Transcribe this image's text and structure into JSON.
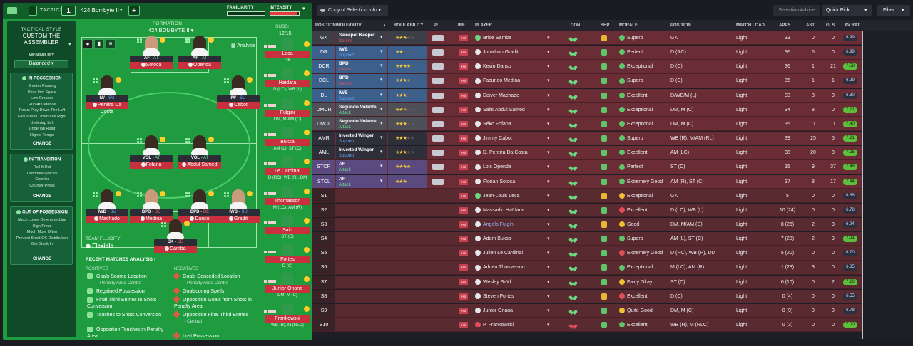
{
  "topbar": {
    "tactics_label": "TACTICS",
    "slot": "1",
    "formation": "424 Bombyte II",
    "familiarity_label": "FAMILIARITY",
    "familiarity_level": 0.02,
    "intensity_label": "INTENSITY",
    "intensity_level": 0.92
  },
  "style": {
    "label": "TACTICAL STYLE",
    "name": "CUSTOM THE ASSEMBLER",
    "mentality_label": "MENTALITY",
    "mentality": "Balanced",
    "in_possession": {
      "title": "IN POSSESSION",
      "items": [
        "Shorter Passing",
        "Pass Into Space",
        "Low Crosses",
        "Run At Defence",
        "Focus Play Down The Left",
        "Focus Play Down The Right",
        "Underlap Left",
        "Underlap Right",
        "Higher Tempo"
      ],
      "change": "CHANGE"
    },
    "in_transition": {
      "title": "IN TRANSITION",
      "items": [
        "Roll It Out",
        "Distribute Quickly",
        "Counter",
        "Counter-Press"
      ],
      "change": "CHANGE"
    },
    "out_of_possession": {
      "title": "OUT OF POSSESSION",
      "items": [
        "Much Lower Defensive Line",
        "High Press",
        "Much More Often",
        "Prevent Short GK Distribution",
        "Get Stuck In"
      ],
      "change": "CHANGE"
    }
  },
  "formation": {
    "title": "FORMATION",
    "name": "424 BOMBYTE II",
    "analysis": "Analysis",
    "subs_label": "SUBS:",
    "subs_count": "12/15",
    "fluidity_label": "TEAM FLUIDITY",
    "fluidity": "Flexible"
  },
  "pitch_players": [
    {
      "role": "AF",
      "duty": "AT",
      "name": "Sotoca",
      "skin": "light"
    },
    {
      "role": "AF",
      "duty": "AT",
      "name": "Openda",
      "skin": "dark"
    },
    {
      "role": "IW",
      "duty": "SU",
      "name": "Pereira Da Costa",
      "skin": "dark"
    },
    {
      "role": "IW",
      "duty": "SU",
      "name": "Cabot",
      "skin": "dark"
    },
    {
      "role": "VOL",
      "duty": "AT",
      "name": "Fofana",
      "skin": "dark"
    },
    {
      "role": "VOL",
      "duty": "AT",
      "name": "Abdul Samed",
      "skin": "dark"
    },
    {
      "role": "IWB",
      "duty": "SU",
      "name": "Machado",
      "skin": "dark"
    },
    {
      "role": "BPD",
      "duty": "DE",
      "name": "Medina",
      "skin": "light"
    },
    {
      "role": "BPD",
      "duty": "DE",
      "name": "Danso",
      "skin": "dark"
    },
    {
      "role": "IWB",
      "duty": "SU",
      "name": "Gradit",
      "skin": "light"
    },
    {
      "role": "SK",
      "duty": "DE",
      "name": "Samba",
      "skin": "dark"
    }
  ],
  "bench": [
    {
      "name": "Leca",
      "pos": "GK"
    },
    {
      "name": "Haidara",
      "pos": "D (LC), WB (L)"
    },
    {
      "name": "Fulgini",
      "pos": "DM, M/AM (C)"
    },
    {
      "name": "Buksa",
      "pos": "AM (L), ST (C)"
    },
    {
      "name": "Le Cardinal",
      "pos": "D (RC), WB (R), DM"
    },
    {
      "name": "Thomasson",
      "pos": "M (LC), AM (R)"
    },
    {
      "name": "Said",
      "pos": "ST (C)"
    },
    {
      "name": "Fortes",
      "pos": "D (C)"
    },
    {
      "name": "Junior Onana",
      "pos": "DM, M (C)"
    },
    {
      "name": "Frankowski",
      "pos": "WB (R), M (RLC)"
    }
  ],
  "recent": {
    "title": "RECENT MATCHES ANALYSIS ›",
    "positives_label": "POSITIVES",
    "negatives_label": "NEGATIVES",
    "positives": [
      {
        "text": "Goals Scored Location",
        "sub": "- Penalty Area Centre"
      },
      {
        "text": "Regained Possession",
        "sub": ""
      },
      {
        "text": "Final Third Entries to Shots Conversion",
        "sub": ""
      },
      {
        "text": "Touches to Shots Conversion",
        "sub": ""
      },
      {
        "text": "Opposition Touches in Penalty Area",
        "sub": ""
      }
    ],
    "negatives": [
      {
        "text": "Goals Conceded Location",
        "sub": "- Penalty Area Centre"
      },
      {
        "text": "Goalscoring Spells",
        "sub": ""
      },
      {
        "text": "Opposition Goals from Shots in Penalty Area",
        "sub": ""
      },
      {
        "text": "Opposition Final Third Entries",
        "sub": "- Central"
      },
      {
        "text": "Lost Possession",
        "sub": ""
      }
    ]
  },
  "table_toolbar": {
    "view": "Copy of Selection Info",
    "advice": "Selection Advice",
    "quick_pick": "Quick Pick",
    "filter": "Filter"
  },
  "columns": [
    "POSITION/ROLE/DUTY",
    "ROLE ABILITY",
    "PI",
    "INF",
    "PLAYER",
    "CON",
    "SHP",
    "MORALE",
    "POSITION",
    "MATCH LOAD",
    "APPS",
    "AST",
    "GLS",
    "AV RAT"
  ],
  "rows": [
    {
      "pos": "GK",
      "role": "Sweeper Keeper",
      "duty": "Defend",
      "stars": 3,
      "player": "Brice Samba",
      "av": "green",
      "morale": "Superb",
      "mor": "pos",
      "position": "GK",
      "load": "Light",
      "apps": "33",
      "ast": "0",
      "gls": "0",
      "rat": "6.99",
      "ratc": "ok2"
    },
    {
      "pos": "DR",
      "role": "IWB",
      "duty": "Support",
      "stars": 2,
      "player": "Jonathan Gradit",
      "av": "white",
      "morale": "Perfect",
      "mor": "pos",
      "position": "D (RC)",
      "load": "Light",
      "apps": "36",
      "ast": "6",
      "gls": "0",
      "rat": "6.99",
      "ratc": "ok2"
    },
    {
      "pos": "DCR",
      "role": "BPD",
      "duty": "Defend",
      "stars": 4,
      "player": "Kevin Danso",
      "av": "white",
      "morale": "Exceptional",
      "mor": "pos",
      "position": "D (C)",
      "load": "Light",
      "apps": "36",
      "ast": "1",
      "gls": "21",
      "rat": "7.58",
      "ratc": "good"
    },
    {
      "pos": "DCL",
      "role": "BPD",
      "duty": "Defend",
      "stars": 3.5,
      "player": "Facundo Medina",
      "av": "white",
      "morale": "Superb",
      "mor": "pos",
      "position": "D (C)",
      "load": "Light",
      "apps": "35",
      "ast": "1",
      "gls": "1",
      "rat": "6.99",
      "ratc": "ok2"
    },
    {
      "pos": "DL",
      "role": "IWB",
      "duty": "Support",
      "stars": 3,
      "player": "Deiver Machado",
      "av": "white",
      "morale": "Excellent",
      "mor": "pos",
      "position": "D/WB/M (L)",
      "load": "Light",
      "apps": "33",
      "ast": "3",
      "gls": "0",
      "rat": "6.80",
      "ratc": "ok2"
    },
    {
      "pos": "DMCR",
      "role": "Segundo Volante",
      "duty": "Attack",
      "stars": 2.5,
      "player": "Salis Abdul Samed",
      "av": "white",
      "morale": "Exceptional",
      "mor": "pos",
      "position": "DM, M (C)",
      "load": "Light",
      "apps": "34",
      "ast": "8",
      "gls": "0",
      "rat": "7.21",
      "ratc": "good"
    },
    {
      "pos": "DMCL",
      "role": "Segundo Volante",
      "duty": "Attack",
      "stars": 3,
      "player": "Séko Fofana",
      "av": "white",
      "morale": "Exceptional",
      "mor": "pos",
      "position": "DM, M (C)",
      "load": "Light",
      "apps": "35",
      "ast": "11",
      "gls": "11",
      "rat": "7.40",
      "ratc": "good"
    },
    {
      "pos": "AMR",
      "role": "Inverted Winger",
      "duty": "Support",
      "stars": 3,
      "player": "Jimmy Cabot",
      "av": "white",
      "morale": "Superb",
      "mor": "pos",
      "position": "WB (R), M/AM (RL)",
      "load": "Light",
      "apps": "39",
      "ast": "25",
      "gls": "5",
      "rat": "7.21",
      "ratc": "good"
    },
    {
      "pos": "AML",
      "role": "Inverted Winger",
      "duty": "Support",
      "stars": 3,
      "player": "D. Pereira Da Costa",
      "av": "white",
      "morale": "Excellent",
      "mor": "pos",
      "position": "AM (LC)",
      "load": "Light",
      "apps": "38",
      "ast": "20",
      "gls": "8",
      "rat": "7.25",
      "ratc": "good"
    },
    {
      "pos": "STCR",
      "role": "AF",
      "duty": "Attack",
      "stars": 4,
      "player": "Lois Openda",
      "av": "white",
      "morale": "Perfect",
      "mor": "pos",
      "position": "ST (C)",
      "load": "Light",
      "apps": "35",
      "ast": "9",
      "gls": "37",
      "rat": "7.48",
      "ratc": "good"
    },
    {
      "pos": "STCL",
      "role": "AF",
      "duty": "Attack",
      "stars": 3,
      "player": "Florian Sotoca",
      "av": "white",
      "morale": "Extremely Good",
      "mor": "pos",
      "position": "AM (R), ST (C)",
      "load": "Light",
      "apps": "37",
      "ast": "8",
      "gls": "17",
      "rat": "7.44",
      "ratc": "good"
    },
    {
      "pos": "S1",
      "role": "",
      "duty": "",
      "stars": 0,
      "player": "Jean-Louis Leca",
      "av": "green",
      "morale": "Exceptional",
      "mor": "ok",
      "position": "GK",
      "load": "Light",
      "apps": "5",
      "ast": "0",
      "gls": "0",
      "rat": "6.68",
      "ratc": "ok2"
    },
    {
      "pos": "S2",
      "role": "",
      "duty": "",
      "stars": 0,
      "player": "Massadio Haïdara",
      "av": "white",
      "morale": "Excellent",
      "mor": "neg",
      "position": "D (LC), WB (L)",
      "load": "Light",
      "apps": "10 (24)",
      "ast": "0",
      "gls": "0",
      "rat": "6.78",
      "ratc": "ok2"
    },
    {
      "pos": "S3",
      "role": "",
      "duty": "",
      "stars": 0,
      "player": "Angelo Fulgini",
      "av": "white",
      "morale": "Good",
      "mor": "ok",
      "position": "DM, M/AM (C)",
      "load": "Light",
      "apps": "8 (26)",
      "ast": "2",
      "gls": "3",
      "rat": "6.94",
      "ratc": "ok2"
    },
    {
      "pos": "S4",
      "role": "",
      "duty": "",
      "stars": 0,
      "player": "Adam Buksa",
      "av": "white",
      "morale": "Superb",
      "mor": "pos",
      "position": "AM (L), ST (C)",
      "load": "Light",
      "apps": "7 (28)",
      "ast": "2",
      "gls": "9",
      "rat": "7.21",
      "ratc": "good"
    },
    {
      "pos": "S5",
      "role": "",
      "duty": "",
      "stars": 0,
      "player": "Julien Le Cardinal",
      "av": "white",
      "morale": "Extremely Good",
      "mor": "neg",
      "position": "D (RC), WB (R), DM",
      "load": "Light",
      "apps": "5 (20)",
      "ast": "0",
      "gls": "0",
      "rat": "6.70",
      "ratc": "ok2"
    },
    {
      "pos": "S6",
      "role": "",
      "duty": "",
      "stars": 0,
      "player": "Adrien Thomasson",
      "av": "white",
      "morale": "Exceptional",
      "mor": "pos",
      "position": "M (LC), AM (R)",
      "load": "Light",
      "apps": "1 (28)",
      "ast": "3",
      "gls": "0",
      "rat": "6.85",
      "ratc": "ok2"
    },
    {
      "pos": "S7",
      "role": "",
      "duty": "",
      "stars": 0,
      "player": "Wesley Saïd",
      "av": "white",
      "morale": "Fairly Okay",
      "mor": "ok",
      "position": "ST (C)",
      "load": "Light",
      "apps": "0 (10)",
      "ast": "0",
      "gls": "2",
      "rat": "7.20",
      "ratc": "good"
    },
    {
      "pos": "S8",
      "role": "",
      "duty": "",
      "stars": 0,
      "player": "Steven Fortes",
      "av": "white",
      "morale": "Excellent",
      "mor": "neg",
      "position": "D (C)",
      "load": "Light",
      "apps": "0 (4)",
      "ast": "0",
      "gls": "0",
      "rat": "6.55",
      "ratc": "ok2"
    },
    {
      "pos": "S9",
      "role": "",
      "duty": "",
      "stars": 0,
      "player": "Junior Onana",
      "av": "white",
      "morale": "Quite Good",
      "mor": "ok",
      "position": "DM, M (C)",
      "load": "Light",
      "apps": "0 (9)",
      "ast": "0",
      "gls": "0",
      "rat": "6.78",
      "ratc": "ok2"
    },
    {
      "pos": "S10",
      "role": "",
      "duty": "",
      "stars": 0,
      "player": "P. Frankowski",
      "av": "red",
      "morale": "Excellent",
      "mor": "pos",
      "position": "WB (R), M (RLC)",
      "load": "Light",
      "apps": "0 (3)",
      "ast": "0",
      "gls": "0",
      "rat": "7.00",
      "ratc": "good"
    }
  ],
  "colors": {
    "pitch_green": "#1f9c3f",
    "name_red": "#c8303d",
    "row_maroon": "#6b2d35",
    "star_gold": "#f4c73b",
    "rating_green": "#5bbf3a"
  }
}
